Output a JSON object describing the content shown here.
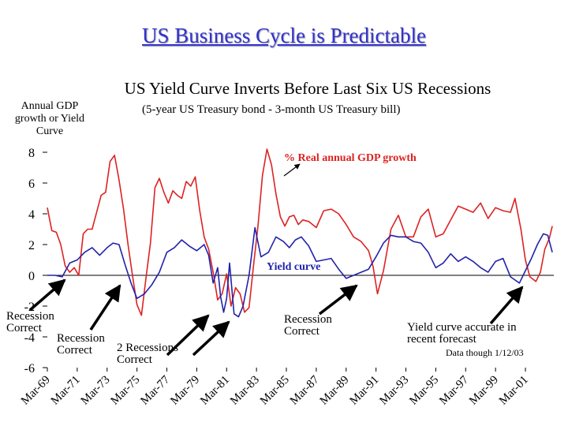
{
  "header": {
    "title": "US Business Cycle is Predictable"
  },
  "chart_data": {
    "type": "line",
    "title": "US Yield Curve Inverts Before Last Six US Recessions",
    "subtitle": "(5-year US Treasury bond - 3-month US Treasury bill)",
    "ylabel": "Annual GDP growth or Yield Curve",
    "ylim": [
      -6,
      8
    ],
    "yticks": [
      8,
      6,
      4,
      2,
      0,
      -2,
      -4,
      -6
    ],
    "xticks": [
      "Mar-69",
      "Mar-71",
      "Mar-73",
      "Mar-75",
      "Mar-77",
      "Mar-79",
      "Mar-81",
      "Mar-83",
      "Mar-85",
      "Mar-87",
      "Mar-89",
      "Mar-91",
      "Mar-93",
      "Mar-95",
      "Mar-97",
      "Mar-99",
      "Mar-01"
    ],
    "x_range": [
      1969.0,
      2002.9
    ],
    "grid": false,
    "series": [
      {
        "name": "% Real annual GDP growth",
        "color": "#dd2222",
        "x": [
          1969.0,
          1969.3,
          1969.6,
          1969.9,
          1970.2,
          1970.5,
          1970.8,
          1971.1,
          1971.4,
          1971.7,
          1972.0,
          1972.3,
          1972.6,
          1972.9,
          1973.2,
          1973.5,
          1973.8,
          1974.1,
          1974.4,
          1974.7,
          1975.0,
          1975.3,
          1975.6,
          1975.9,
          1976.2,
          1976.5,
          1976.8,
          1977.1,
          1977.4,
          1977.7,
          1978.0,
          1978.3,
          1978.6,
          1978.9,
          1979.2,
          1979.5,
          1979.8,
          1980.1,
          1980.4,
          1980.7,
          1981.0,
          1981.3,
          1981.6,
          1981.9,
          1982.2,
          1982.5,
          1982.8,
          1983.1,
          1983.4,
          1983.7,
          1984.0,
          1984.3,
          1984.6,
          1984.9,
          1985.2,
          1985.5,
          1985.8,
          1986.1,
          1986.5,
          1987.0,
          1987.5,
          1988.0,
          1988.5,
          1989.0,
          1989.5,
          1990.0,
          1990.5,
          1990.8,
          1991.1,
          1991.5,
          1992.0,
          1992.5,
          1993.0,
          1993.5,
          1994.0,
          1994.5,
          1995.0,
          1995.5,
          1996.0,
          1996.5,
          1997.0,
          1997.5,
          1998.0,
          1998.5,
          1999.0,
          1999.5,
          2000.0,
          2000.3,
          2000.7,
          2001.0,
          2001.3,
          2001.7,
          2002.0,
          2002.3,
          2002.6,
          2002.8
        ],
        "values": [
          4.4,
          2.9,
          2.8,
          2.0,
          0.6,
          0.2,
          0.5,
          0.0,
          2.7,
          3.0,
          3.0,
          4.1,
          5.2,
          5.4,
          7.4,
          7.8,
          6.2,
          4.3,
          2.0,
          0.0,
          -1.9,
          -2.6,
          -0.2,
          2.1,
          5.7,
          6.3,
          5.4,
          4.7,
          5.5,
          5.2,
          5.0,
          6.1,
          5.8,
          6.4,
          4.2,
          2.5,
          1.7,
          0.2,
          -1.6,
          -1.2,
          0.1,
          -2.0,
          -0.8,
          -1.2,
          -2.4,
          -2.1,
          0.6,
          3.2,
          6.5,
          8.2,
          7.2,
          5.3,
          3.8,
          3.2,
          3.8,
          3.9,
          3.3,
          3.6,
          3.5,
          3.1,
          4.2,
          4.3,
          4.0,
          3.3,
          2.5,
          2.2,
          1.6,
          0.6,
          -1.2,
          0.3,
          3.0,
          3.9,
          2.5,
          2.5,
          3.8,
          4.3,
          2.5,
          2.7,
          3.6,
          4.5,
          4.3,
          4.1,
          4.7,
          3.7,
          4.4,
          4.2,
          4.1,
          5.0,
          3.0,
          1.0,
          -0.1,
          -0.4,
          0.2,
          1.7,
          2.4,
          3.2
        ]
      },
      {
        "name": "Yield curve",
        "color": "#2222aa",
        "x": [
          1969.0,
          1969.5,
          1970.0,
          1970.5,
          1971.0,
          1971.5,
          1972.0,
          1972.5,
          1973.0,
          1973.4,
          1973.8,
          1974.2,
          1974.6,
          1975.0,
          1975.5,
          1976.0,
          1976.5,
          1977.0,
          1977.5,
          1978.0,
          1978.5,
          1979.0,
          1979.5,
          1979.8,
          1980.1,
          1980.4,
          1980.6,
          1980.8,
          1981.0,
          1981.2,
          1981.5,
          1981.8,
          1982.1,
          1982.5,
          1982.9,
          1983.3,
          1983.8,
          1984.3,
          1984.8,
          1985.2,
          1985.6,
          1986.0,
          1986.5,
          1987.0,
          1987.5,
          1988.0,
          1988.5,
          1989.0,
          1989.5,
          1990.0,
          1990.5,
          1991.0,
          1991.5,
          1992.0,
          1992.5,
          1993.0,
          1993.5,
          1994.0,
          1994.5,
          1995.0,
          1995.5,
          1996.0,
          1996.5,
          1997.0,
          1997.5,
          1998.0,
          1998.5,
          1999.0,
          1999.5,
          2000.0,
          2000.3,
          2000.6,
          2001.0,
          2001.4,
          2001.8,
          2002.2,
          2002.5,
          2002.8
        ],
        "values": [
          0.0,
          0.0,
          -0.1,
          0.8,
          1.0,
          1.5,
          1.8,
          1.3,
          1.8,
          2.1,
          2.0,
          0.7,
          -0.5,
          -1.5,
          -1.2,
          -0.6,
          0.2,
          1.5,
          1.8,
          2.3,
          1.9,
          1.6,
          2.0,
          1.3,
          -0.5,
          0.5,
          -1.4,
          -2.4,
          -1.5,
          0.8,
          -2.5,
          -2.7,
          -2.0,
          0.0,
          3.1,
          1.2,
          1.5,
          2.5,
          2.2,
          1.8,
          2.3,
          2.5,
          1.9,
          0.9,
          1.0,
          1.1,
          0.4,
          -0.2,
          0.0,
          0.2,
          0.4,
          1.2,
          2.1,
          2.6,
          2.5,
          2.5,
          2.2,
          2.1,
          1.5,
          0.5,
          0.8,
          1.4,
          0.9,
          1.2,
          0.9,
          0.5,
          0.2,
          0.9,
          1.1,
          -0.1,
          -0.3,
          -0.5,
          0.3,
          1.1,
          2.0,
          2.7,
          2.6,
          1.5
        ]
      }
    ],
    "annotations": [
      {
        "text": "% Real annual GDP growth",
        "color": "#dd2222"
      },
      {
        "text": "Yield curve",
        "color": "#2222aa"
      },
      {
        "text": "Recession Correct",
        "arrow_to_year": 1970.2
      },
      {
        "text": "Recession Correct",
        "arrow_to_year": 1973.8
      },
      {
        "text": "2 Recessions Correct",
        "arrow_to_year": 1980.4
      },
      {
        "text": "Recession Correct",
        "arrow_to_year": 1989.5
      },
      {
        "text": "Yield curve accurate in recent forecast",
        "arrow_to_year": 2000.5
      },
      {
        "text": "Data though 1/12/03"
      }
    ]
  }
}
